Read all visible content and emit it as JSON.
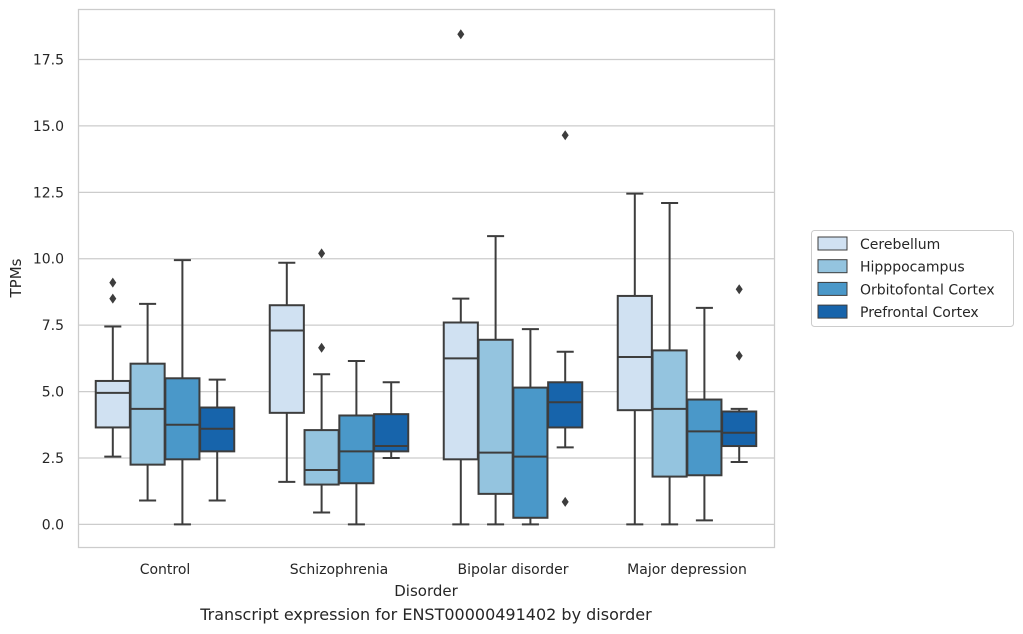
{
  "chart_data": {
    "type": "box",
    "xlabel": "Disorder",
    "ylabel": "TPMs",
    "ylim": [
      -0.85,
      19.4
    ],
    "yticks": [
      0.0,
      2.5,
      5.0,
      7.5,
      10.0,
      12.5,
      15.0,
      17.5
    ],
    "ytick_labels": [
      "0.0",
      "2.5",
      "5.0",
      "7.5",
      "10.0",
      "12.5",
      "15.0",
      "17.5"
    ],
    "grid": "horizontal",
    "legend_position": "right",
    "categories": [
      "Control",
      "Schizophrenia",
      "Bipolar disorder",
      "Major depression"
    ],
    "series": [
      {
        "name": "Cerebellum",
        "color": "#d0e1f2",
        "boxes": [
          {
            "whislo": 2.55,
            "q1": 3.65,
            "med": 4.95,
            "q3": 5.4,
            "whishi": 7.45,
            "fliers": [
              8.5,
              9.1
            ]
          },
          {
            "whislo": 1.6,
            "q1": 4.2,
            "med": 7.3,
            "q3": 8.25,
            "whishi": 9.85,
            "fliers": []
          },
          {
            "whislo": 0.0,
            "q1": 2.45,
            "med": 6.25,
            "q3": 7.6,
            "whishi": 8.5,
            "fliers": [
              18.45
            ]
          },
          {
            "whislo": 0.0,
            "q1": 4.3,
            "med": 6.3,
            "q3": 8.6,
            "whishi": 12.45,
            "fliers": []
          }
        ]
      },
      {
        "name": "Hipppocampus",
        "color": "#94c4df",
        "boxes": [
          {
            "whislo": 0.9,
            "q1": 2.25,
            "med": 4.35,
            "q3": 6.05,
            "whishi": 8.3,
            "fliers": []
          },
          {
            "whislo": 0.45,
            "q1": 1.5,
            "med": 2.05,
            "q3": 3.55,
            "whishi": 5.65,
            "fliers": [
              6.65,
              10.2
            ]
          },
          {
            "whislo": 0.0,
            "q1": 1.15,
            "med": 2.7,
            "q3": 6.95,
            "whishi": 10.85,
            "fliers": []
          },
          {
            "whislo": 0.0,
            "q1": 1.8,
            "med": 4.35,
            "q3": 6.55,
            "whishi": 12.1,
            "fliers": []
          }
        ]
      },
      {
        "name": "Orbitofontal Cortex",
        "color": "#4a98c9",
        "boxes": [
          {
            "whislo": 0.0,
            "q1": 2.45,
            "med": 3.75,
            "q3": 5.5,
            "whishi": 9.95,
            "fliers": []
          },
          {
            "whislo": 0.0,
            "q1": 1.55,
            "med": 2.75,
            "q3": 4.1,
            "whishi": 6.15,
            "fliers": []
          },
          {
            "whislo": 0.0,
            "q1": 0.25,
            "med": 2.55,
            "q3": 5.15,
            "whishi": 7.35,
            "fliers": []
          },
          {
            "whislo": 0.15,
            "q1": 1.85,
            "med": 3.5,
            "q3": 4.7,
            "whishi": 8.15,
            "fliers": []
          }
        ]
      },
      {
        "name": "Prefrontal Cortex",
        "color": "#1764ab",
        "boxes": [
          {
            "whislo": 0.9,
            "q1": 2.75,
            "med": 3.6,
            "q3": 4.4,
            "whishi": 5.45,
            "fliers": []
          },
          {
            "whislo": 2.5,
            "q1": 2.75,
            "med": 2.95,
            "q3": 4.15,
            "whishi": 5.35,
            "fliers": []
          },
          {
            "whislo": 2.9,
            "q1": 3.65,
            "med": 4.6,
            "q3": 5.35,
            "whishi": 6.5,
            "fliers": [
              0.85,
              14.65
            ]
          },
          {
            "whislo": 2.35,
            "q1": 2.95,
            "med": 3.45,
            "q3": 4.25,
            "whishi": 4.35,
            "fliers": [
              6.35,
              8.85
            ]
          }
        ]
      }
    ],
    "caption": "Transcript expression for ENST00000491402 by disorder"
  }
}
